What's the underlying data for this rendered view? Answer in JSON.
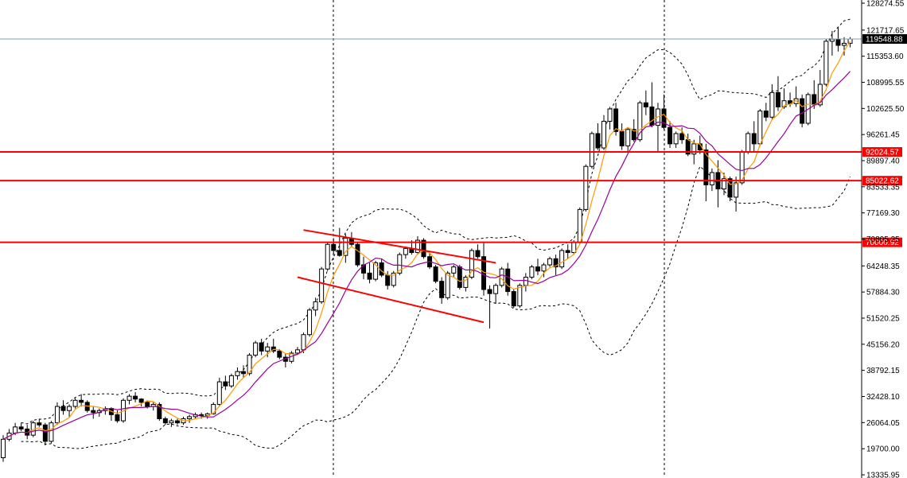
{
  "chart_data": {
    "type": "candlestick",
    "title": "",
    "xlabel": "",
    "ylabel": "",
    "ylim": [
      13335.95,
      128274.55
    ],
    "y_ticks": [
      "128274.55",
      "121717.65",
      "115353.60",
      "108995.55",
      "102625.50",
      "96261.45",
      "89897.40",
      "83533.35",
      "77169.30",
      "70805.25",
      "64248.35",
      "57884.30",
      "51520.25",
      "45156.20",
      "38792.15",
      "32428.10",
      "26064.05",
      "19700.00",
      "13335.95"
    ],
    "current_price": {
      "label": "119548.88",
      "value": 119548.88,
      "color": "#000000"
    },
    "horizontal_levels": [
      {
        "label": "92024.57",
        "value": 92024.57,
        "color": "#ff0000"
      },
      {
        "label": "85022.62",
        "value": 85022.62,
        "color": "#ff0000"
      },
      {
        "label": "70000.92",
        "value": 70000.92,
        "color": "#ff0000"
      }
    ],
    "channel_lines": [
      {
        "name": "",
        "from": [
          50,
          73000
        ],
        "to": [
          82,
          65000
        ],
        "color": "#ff0000"
      },
      {
        "name": "",
        "from": [
          49,
          61500
        ],
        "to": [
          80,
          50500
        ],
        "color": "#ff0000"
      }
    ],
    "candles": [
      [
        0,
        17500,
        23000,
        16500,
        22000
      ],
      [
        1,
        22000,
        24500,
        21500,
        23500
      ],
      [
        2,
        23500,
        26000,
        23000,
        25000
      ],
      [
        3,
        25000,
        26000,
        24000,
        24500
      ],
      [
        4,
        24500,
        25500,
        22000,
        23000
      ],
      [
        5,
        23000,
        26500,
        22500,
        26000
      ],
      [
        6,
        26000,
        27000,
        25000,
        25500
      ],
      [
        7,
        25500,
        26000,
        20500,
        21500
      ],
      [
        8,
        21500,
        26500,
        21000,
        26000
      ],
      [
        9,
        26000,
        31000,
        25500,
        30000
      ],
      [
        10,
        30000,
        31500,
        28000,
        29000
      ],
      [
        11,
        29000,
        30500,
        27500,
        30000
      ],
      [
        12,
        30000,
        32000,
        29500,
        31500
      ],
      [
        13,
        31500,
        33000,
        30000,
        31000
      ],
      [
        14,
        31000,
        31500,
        28500,
        29000
      ],
      [
        15,
        29000,
        30000,
        27000,
        28500
      ],
      [
        16,
        28500,
        29500,
        27500,
        29000
      ],
      [
        17,
        29000,
        30000,
        28000,
        29500
      ],
      [
        18,
        29500,
        29800,
        26500,
        28000
      ],
      [
        19,
        28000,
        29000,
        26000,
        26500
      ],
      [
        20,
        26500,
        32000,
        26000,
        31500
      ],
      [
        21,
        31500,
        33000,
        30500,
        32500
      ],
      [
        22,
        32500,
        33500,
        31000,
        31800
      ],
      [
        23,
        31800,
        32000,
        30000,
        31000
      ],
      [
        24,
        31000,
        31500,
        29500,
        30000
      ],
      [
        25,
        30000,
        31000,
        29000,
        30500
      ],
      [
        26,
        30500,
        31000,
        26500,
        27000
      ],
      [
        27,
        27000,
        27500,
        25500,
        26000
      ],
      [
        28,
        26000,
        27000,
        25000,
        26500
      ],
      [
        29,
        26500,
        27000,
        25500,
        26000
      ],
      [
        30,
        26000,
        27500,
        25500,
        27000
      ],
      [
        31,
        27000,
        28000,
        26000,
        27500
      ],
      [
        32,
        27500,
        28500,
        27000,
        28000
      ],
      [
        33,
        28000,
        28500,
        27000,
        27800
      ],
      [
        34,
        27800,
        28500,
        27000,
        28200
      ],
      [
        35,
        28200,
        31000,
        28000,
        30500
      ],
      [
        36,
        30500,
        37000,
        30000,
        36000
      ],
      [
        37,
        36000,
        37500,
        34000,
        35000
      ],
      [
        38,
        35000,
        38000,
        34500,
        37500
      ],
      [
        39,
        37500,
        39500,
        36500,
        38500
      ],
      [
        40,
        38500,
        40000,
        37000,
        38000
      ],
      [
        41,
        38000,
        43000,
        37500,
        42500
      ],
      [
        42,
        42500,
        46000,
        42000,
        45500
      ],
      [
        43,
        45500,
        46500,
        42500,
        43500
      ],
      [
        44,
        43500,
        45500,
        42000,
        44500
      ],
      [
        45,
        44500,
        46500,
        43000,
        43500
      ],
      [
        46,
        43500,
        44000,
        41500,
        42000
      ],
      [
        47,
        42000,
        43000,
        39500,
        41000
      ],
      [
        48,
        41000,
        43500,
        40500,
        43000
      ],
      [
        49,
        43000,
        44500,
        42500,
        43800
      ],
      [
        50,
        43800,
        48000,
        43000,
        47500
      ],
      [
        51,
        47500,
        54000,
        47000,
        53500
      ],
      [
        52,
        53500,
        56500,
        52000,
        55500
      ],
      [
        53,
        55500,
        64000,
        55000,
        63500
      ],
      [
        54,
        63500,
        70000,
        63000,
        69500
      ],
      [
        55,
        69500,
        71000,
        67000,
        68000
      ],
      [
        56,
        68000,
        73500,
        66500,
        66800
      ],
      [
        57,
        66800,
        72000,
        65000,
        71000
      ],
      [
        58,
        71000,
        72500,
        69000,
        69500
      ],
      [
        59,
        69500,
        70000,
        64000,
        64500
      ],
      [
        60,
        64500,
        66500,
        61000,
        62500
      ],
      [
        61,
        62500,
        65000,
        60000,
        61000
      ],
      [
        62,
        61000,
        65500,
        60500,
        65000
      ],
      [
        63,
        65000,
        66000,
        61500,
        62000
      ],
      [
        64,
        62000,
        63000,
        58500,
        59500
      ],
      [
        65,
        59500,
        63000,
        59000,
        62500
      ],
      [
        66,
        62500,
        67500,
        62000,
        67000
      ],
      [
        67,
        67000,
        69000,
        66000,
        68500
      ],
      [
        68,
        68500,
        70500,
        67000,
        67500
      ],
      [
        69,
        67500,
        71500,
        67000,
        70500
      ],
      [
        70,
        70500,
        71000,
        66000,
        66500
      ],
      [
        71,
        66500,
        67500,
        63500,
        64000
      ],
      [
        72,
        64000,
        64500,
        60000,
        60500
      ],
      [
        73,
        60500,
        61500,
        55000,
        56500
      ],
      [
        74,
        56500,
        63000,
        56000,
        62500
      ],
      [
        75,
        62500,
        64500,
        61500,
        64000
      ],
      [
        76,
        64000,
        64500,
        58500,
        59000
      ],
      [
        77,
        59000,
        62000,
        58000,
        61500
      ],
      [
        78,
        61500,
        68500,
        61000,
        68000
      ],
      [
        79,
        68000,
        69500,
        66000,
        66500
      ],
      [
        80,
        66500,
        70000,
        57000,
        58500
      ],
      [
        81,
        58500,
        59500,
        49000,
        57500
      ],
      [
        82,
        57500,
        60000,
        55000,
        59500
      ],
      [
        83,
        59500,
        64000,
        59000,
        63500
      ],
      [
        84,
        63500,
        65000,
        57000,
        58000
      ],
      [
        85,
        58000,
        58500,
        54000,
        54500
      ],
      [
        86,
        54500,
        60000,
        54000,
        59500
      ],
      [
        87,
        59500,
        62500,
        58000,
        61500
      ],
      [
        88,
        61500,
        64500,
        61000,
        64000
      ],
      [
        89,
        64000,
        66000,
        62000,
        63000
      ],
      [
        90,
        63000,
        65000,
        61500,
        64500
      ],
      [
        91,
        64500,
        66500,
        64000,
        66000
      ],
      [
        92,
        66000,
        67000,
        62000,
        64000
      ],
      [
        93,
        64000,
        68500,
        63500,
        68000
      ],
      [
        94,
        68000,
        69500,
        66000,
        67500
      ],
      [
        95,
        67500,
        70500,
        67000,
        70000
      ],
      [
        96,
        70000,
        78500,
        69500,
        78000
      ],
      [
        97,
        78000,
        89000,
        77500,
        88500
      ],
      [
        98,
        88500,
        97000,
        88000,
        96500
      ],
      [
        99,
        96500,
        99000,
        92500,
        93000
      ],
      [
        100,
        93000,
        101000,
        92500,
        99500
      ],
      [
        101,
        99500,
        103000,
        97500,
        102500
      ],
      [
        102,
        102500,
        104000,
        96000,
        97000
      ],
      [
        103,
        97000,
        99000,
        92500,
        93500
      ],
      [
        104,
        93500,
        98000,
        92000,
        97500
      ],
      [
        105,
        97500,
        100000,
        94500,
        95000
      ],
      [
        106,
        95000,
        104500,
        94500,
        104000
      ],
      [
        107,
        104000,
        107000,
        101000,
        103000
      ],
      [
        108,
        103000,
        109000,
        98000,
        98500
      ],
      [
        109,
        98500,
        104000,
        92000,
        102500
      ],
      [
        110,
        102500,
        106000,
        97500,
        98000
      ],
      [
        111,
        98000,
        99500,
        93000,
        94000
      ],
      [
        112,
        94000,
        97000,
        93000,
        96500
      ],
      [
        113,
        96500,
        98000,
        94000,
        95000
      ],
      [
        114,
        95000,
        96500,
        91000,
        91500
      ],
      [
        115,
        91500,
        95000,
        89000,
        94000
      ],
      [
        116,
        94000,
        96000,
        91500,
        92500
      ],
      [
        117,
        92500,
        94000,
        80000,
        84000
      ],
      [
        118,
        84000,
        88000,
        82500,
        87000
      ],
      [
        119,
        87000,
        90000,
        78500,
        83000
      ],
      [
        120,
        83000,
        87000,
        81500,
        85500
      ],
      [
        121,
        85500,
        86000,
        80000,
        81000
      ],
      [
        122,
        81000,
        86000,
        77500,
        84500
      ],
      [
        123,
        84500,
        92500,
        84000,
        92000
      ],
      [
        124,
        92000,
        97000,
        91500,
        96500
      ],
      [
        125,
        96500,
        99500,
        92000,
        94000
      ],
      [
        126,
        94000,
        102500,
        93500,
        102000
      ],
      [
        127,
        102000,
        104000,
        99500,
        100500
      ],
      [
        128,
        100500,
        108500,
        100000,
        106500
      ],
      [
        129,
        106500,
        110500,
        102000,
        103000
      ],
      [
        130,
        103000,
        107500,
        102500,
        104500
      ],
      [
        131,
        104500,
        106500,
        103000,
        103800
      ],
      [
        132,
        103800,
        108000,
        103000,
        105000
      ],
      [
        133,
        105000,
        106000,
        98000,
        99000
      ],
      [
        134,
        99000,
        106500,
        98500,
        106000
      ],
      [
        135,
        106000,
        109500,
        102500,
        103500
      ],
      [
        136,
        103500,
        112000,
        103000,
        108500
      ],
      [
        137,
        108500,
        119500,
        108000,
        119000
      ],
      [
        138,
        119000,
        121500,
        115500,
        119500
      ],
      [
        139,
        119500,
        122500,
        116500,
        118000
      ],
      [
        140,
        118000,
        120000,
        115500,
        118500
      ],
      [
        141,
        118500,
        120000,
        117500,
        119548.88
      ]
    ]
  }
}
